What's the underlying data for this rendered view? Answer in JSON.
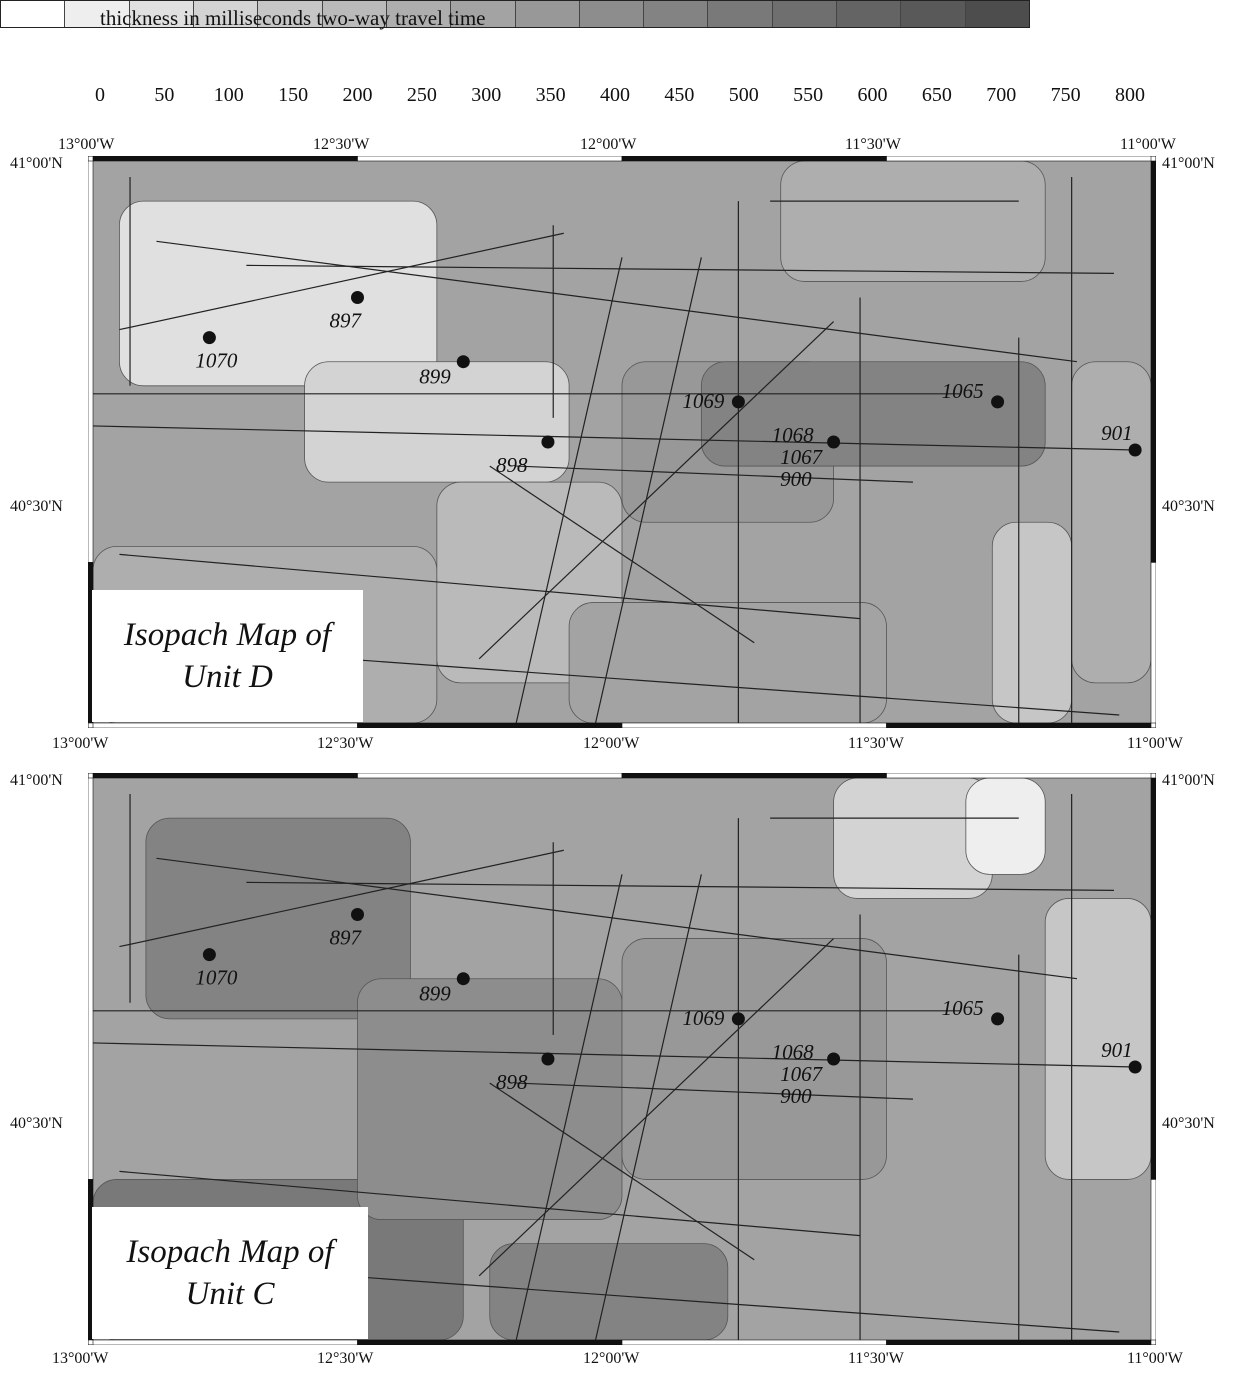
{
  "legend": {
    "title": "thickness in milliseconds two-way travel time",
    "ticks": [
      "0",
      "50",
      "100",
      "150",
      "200",
      "250",
      "300",
      "350",
      "400",
      "450",
      "500",
      "550",
      "600",
      "650",
      "700",
      "750",
      "800"
    ],
    "colors": [
      "#ffffff",
      "#eeeeee",
      "#e0e0e0",
      "#d3d3d3",
      "#c6c6c6",
      "#bababa",
      "#aeaeae",
      "#a3a3a3",
      "#989898",
      "#8d8d8d",
      "#838383",
      "#797979",
      "#6f6f6f",
      "#646464",
      "#595959",
      "#4d4d4d"
    ]
  },
  "axis_labels": {
    "lon": [
      "13°00'W",
      "12°30'W",
      "12°00'W",
      "11°30'W",
      "11°00'W"
    ],
    "lat_top": "41°00'N",
    "lat_mid": "40°30'N"
  },
  "maps": [
    {
      "title_line1": "Isopach Map of",
      "title_line2": "Unit D"
    },
    {
      "title_line1": "Isopach Map of",
      "title_line2": "Unit C"
    }
  ],
  "sites": [
    {
      "label": "1070",
      "lon": -12.78,
      "lat": 40.78
    },
    {
      "label": "897",
      "lon": -12.5,
      "lat": 40.83
    },
    {
      "label": "899",
      "lon": -12.3,
      "lat": 40.75
    },
    {
      "label": "1069",
      "lon": -11.78,
      "lat": 40.7
    },
    {
      "label": "898",
      "lon": -12.14,
      "lat": 40.65
    },
    {
      "label": "1068",
      "lon": -11.6,
      "lat": 40.65
    },
    {
      "label": "1067",
      "lon": -11.58,
      "lat": 40.65
    },
    {
      "label": "900",
      "lon": -11.58,
      "lat": 40.65
    },
    {
      "label": "1065",
      "lon": -11.29,
      "lat": 40.7
    },
    {
      "label": "901",
      "lon": -11.03,
      "lat": 40.64
    }
  ],
  "zones": {
    "unit_d": [
      {
        "lon0": -13.0,
        "lat0": 40.3,
        "lon1": -12.35,
        "lat1": 40.52,
        "class": 6
      },
      {
        "lon0": -12.95,
        "lat0": 40.72,
        "lon1": -12.35,
        "lat1": 40.95,
        "class": 2
      },
      {
        "lon0": -12.6,
        "lat0": 40.6,
        "lon1": -12.1,
        "lat1": 40.75,
        "class": 3
      },
      {
        "lon0": -12.35,
        "lat0": 40.35,
        "lon1": -12.0,
        "lat1": 40.6,
        "class": 5
      },
      {
        "lon0": -12.0,
        "lat0": 40.55,
        "lon1": -11.6,
        "lat1": 40.75,
        "class": 8
      },
      {
        "lon0": -11.85,
        "lat0": 40.62,
        "lon1": -11.2,
        "lat1": 40.75,
        "class": 10
      },
      {
        "lon0": -11.7,
        "lat0": 40.85,
        "lon1": -11.2,
        "lat1": 41.0,
        "class": 6
      },
      {
        "lon0": -11.3,
        "lat0": 40.3,
        "lon1": -11.15,
        "lat1": 40.55,
        "class": 4
      },
      {
        "lon0": -11.15,
        "lat0": 40.35,
        "lon1": -11.0,
        "lat1": 40.75,
        "class": 6
      },
      {
        "lon0": -12.1,
        "lat0": 40.3,
        "lon1": -11.5,
        "lat1": 40.45,
        "class": 7
      }
    ],
    "unit_c": [
      {
        "lon0": -13.0,
        "lat0": 40.3,
        "lon1": -12.3,
        "lat1": 40.5,
        "class": 11
      },
      {
        "lon0": -12.9,
        "lat0": 40.7,
        "lon1": -12.4,
        "lat1": 40.95,
        "class": 10
      },
      {
        "lon0": -12.5,
        "lat0": 40.45,
        "lon1": -12.0,
        "lat1": 40.75,
        "class": 9
      },
      {
        "lon0": -12.0,
        "lat0": 40.5,
        "lon1": -11.5,
        "lat1": 40.8,
        "class": 8
      },
      {
        "lon0": -11.6,
        "lat0": 40.85,
        "lon1": -11.3,
        "lat1": 41.0,
        "class": 3
      },
      {
        "lon0": -11.35,
        "lat0": 40.88,
        "lon1": -11.2,
        "lat1": 41.0,
        "class": 1
      },
      {
        "lon0": -11.2,
        "lat0": 40.5,
        "lon1": -11.0,
        "lat1": 40.85,
        "class": 4
      },
      {
        "lon0": -12.25,
        "lat0": 40.3,
        "lon1": -11.8,
        "lat1": 40.42,
        "class": 10
      }
    ]
  }
}
